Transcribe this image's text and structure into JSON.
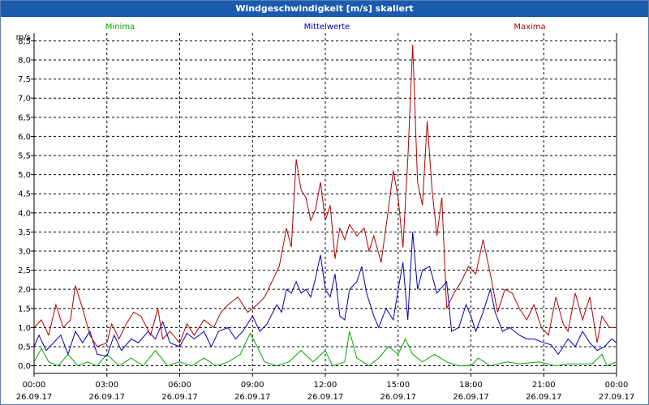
{
  "window": {
    "title": "Windgeschwindigkeit [m/s] skaliert"
  },
  "chart_data": {
    "type": "line",
    "title": "Windgeschwindigkeit [m/s] skaliert",
    "ylabel": "m/s",
    "ylim": [
      -0.2,
      8.7
    ],
    "yticks": [
      "0,0",
      "0,5",
      "1,0",
      "1,5",
      "2,0",
      "2,5",
      "3,0",
      "3,5",
      "4,0",
      "4,5",
      "5,0",
      "5,5",
      "6,0",
      "6,5",
      "7,0",
      "7,5",
      "8,0",
      "8,5"
    ],
    "xlim": [
      0,
      24
    ],
    "xticks": [
      {
        "x": 0,
        "time": "00:00",
        "date": "26.09.17"
      },
      {
        "x": 3,
        "time": "03:00",
        "date": "26.09.17"
      },
      {
        "x": 6,
        "time": "06:00",
        "date": "26.09.17"
      },
      {
        "x": 9,
        "time": "09:00",
        "date": "26.09.17"
      },
      {
        "x": 12,
        "time": "12:00",
        "date": "26.09.17"
      },
      {
        "x": 15,
        "time": "15:00",
        "date": "26.09.17"
      },
      {
        "x": 18,
        "time": "18:00",
        "date": "26.09.17"
      },
      {
        "x": 21,
        "time": "21:00",
        "date": "26.09.17"
      },
      {
        "x": 24,
        "time": "00:00",
        "date": "27.09.17"
      }
    ],
    "grid": true,
    "legend_position": "top",
    "series": [
      {
        "name": "Minima",
        "color": "#00aa00",
        "points": [
          [
            0,
            0.1
          ],
          [
            0.3,
            0.45
          ],
          [
            0.6,
            0.1
          ],
          [
            1.0,
            0
          ],
          [
            1.4,
            0.3
          ],
          [
            1.8,
            0
          ],
          [
            2.2,
            0.1
          ],
          [
            2.6,
            0
          ],
          [
            3.0,
            0.3
          ],
          [
            3.5,
            0
          ],
          [
            4.0,
            0.2
          ],
          [
            4.5,
            0
          ],
          [
            5.0,
            0.4
          ],
          [
            5.5,
            0
          ],
          [
            6.0,
            0.1
          ],
          [
            6.5,
            0
          ],
          [
            7.0,
            0.2
          ],
          [
            7.5,
            0
          ],
          [
            8.0,
            0.1
          ],
          [
            8.5,
            0.3
          ],
          [
            8.9,
            0.85
          ],
          [
            9.2,
            0.5
          ],
          [
            9.5,
            0.1
          ],
          [
            10.0,
            0
          ],
          [
            10.5,
            0.1
          ],
          [
            11.0,
            0.4
          ],
          [
            11.5,
            0.1
          ],
          [
            12.0,
            0.4
          ],
          [
            12.3,
            0
          ],
          [
            12.8,
            0.1
          ],
          [
            13.0,
            0.9
          ],
          [
            13.3,
            0.2
          ],
          [
            13.8,
            0
          ],
          [
            14.2,
            0.2
          ],
          [
            14.6,
            0.5
          ],
          [
            15.0,
            0.3
          ],
          [
            15.3,
            0.7
          ],
          [
            15.6,
            0.3
          ],
          [
            16.0,
            0.1
          ],
          [
            16.5,
            0.3
          ],
          [
            17.0,
            0.1
          ],
          [
            17.5,
            0
          ],
          [
            18.0,
            0
          ],
          [
            18.3,
            0.2
          ],
          [
            18.8,
            0
          ],
          [
            19.5,
            0.1
          ],
          [
            20,
            0.05
          ],
          [
            20.8,
            0.1
          ],
          [
            21.5,
            0
          ],
          [
            22.0,
            0.05
          ],
          [
            23.0,
            0.05
          ],
          [
            23.4,
            0.3
          ],
          [
            23.6,
            0
          ],
          [
            24.0,
            0.1
          ]
        ]
      },
      {
        "name": "Mittelwerte",
        "color": "#0000b0",
        "points": [
          [
            0,
            0.5
          ],
          [
            0.2,
            0.8
          ],
          [
            0.5,
            0.4
          ],
          [
            0.8,
            0.6
          ],
          [
            1.1,
            0.8
          ],
          [
            1.4,
            0.3
          ],
          [
            1.7,
            0.9
          ],
          [
            2.0,
            0.6
          ],
          [
            2.3,
            0.9
          ],
          [
            2.6,
            0.3
          ],
          [
            3.0,
            0.25
          ],
          [
            3.3,
            0.8
          ],
          [
            3.6,
            0.4
          ],
          [
            4.0,
            0.7
          ],
          [
            4.3,
            0.6
          ],
          [
            4.7,
            0.9
          ],
          [
            5.0,
            0.7
          ],
          [
            5.3,
            1.15
          ],
          [
            5.6,
            0.6
          ],
          [
            6.0,
            0.5
          ],
          [
            6.3,
            0.85
          ],
          [
            6.6,
            0.7
          ],
          [
            7.0,
            0.9
          ],
          [
            7.3,
            0.5
          ],
          [
            7.6,
            0.9
          ],
          [
            8.0,
            1.0
          ],
          [
            8.3,
            0.7
          ],
          [
            8.6,
            0.9
          ],
          [
            9.0,
            1.3
          ],
          [
            9.3,
            0.9
          ],
          [
            9.6,
            1.1
          ],
          [
            10.0,
            1.6
          ],
          [
            10.2,
            1.4
          ],
          [
            10.4,
            2.0
          ],
          [
            10.6,
            1.9
          ],
          [
            10.8,
            2.2
          ],
          [
            11.0,
            1.9
          ],
          [
            11.2,
            2.0
          ],
          [
            11.4,
            1.8
          ],
          [
            11.6,
            2.3
          ],
          [
            11.8,
            2.9
          ],
          [
            12.0,
            2.0
          ],
          [
            12.2,
            1.8
          ],
          [
            12.4,
            2.4
          ],
          [
            12.6,
            1.3
          ],
          [
            12.8,
            1.2
          ],
          [
            13.0,
            2.0
          ],
          [
            13.3,
            2.2
          ],
          [
            13.5,
            2.6
          ],
          [
            13.7,
            1.9
          ],
          [
            14.0,
            1.3
          ],
          [
            14.2,
            1.0
          ],
          [
            14.5,
            1.5
          ],
          [
            14.8,
            1.2
          ],
          [
            15.0,
            2.0
          ],
          [
            15.2,
            2.7
          ],
          [
            15.4,
            1.2
          ],
          [
            15.6,
            3.5
          ],
          [
            15.8,
            2.0
          ],
          [
            16.0,
            2.5
          ],
          [
            16.3,
            2.6
          ],
          [
            16.6,
            1.9
          ],
          [
            17.0,
            2.2
          ],
          [
            17.2,
            0.9
          ],
          [
            17.5,
            1.0
          ],
          [
            17.8,
            1.6
          ],
          [
            18.0,
            1.3
          ],
          [
            18.2,
            0.9
          ],
          [
            18.5,
            1.4
          ],
          [
            18.8,
            2.0
          ],
          [
            19.0,
            1.4
          ],
          [
            19.3,
            0.9
          ],
          [
            19.6,
            1.0
          ],
          [
            20.0,
            0.8
          ],
          [
            20.3,
            0.7
          ],
          [
            20.6,
            0.7
          ],
          [
            21.0,
            0.6
          ],
          [
            21.3,
            0.55
          ],
          [
            21.6,
            0.3
          ],
          [
            22.0,
            0.7
          ],
          [
            22.3,
            0.5
          ],
          [
            22.6,
            0.9
          ],
          [
            22.9,
            0.6
          ],
          [
            23.2,
            0.4
          ],
          [
            23.5,
            0.5
          ],
          [
            23.8,
            0.7
          ],
          [
            24.0,
            0.6
          ]
        ]
      },
      {
        "name": "Maxima",
        "color": "#b00000",
        "points": [
          [
            0,
            1.0
          ],
          [
            0.3,
            1.2
          ],
          [
            0.6,
            0.8
          ],
          [
            0.9,
            1.6
          ],
          [
            1.2,
            1.0
          ],
          [
            1.5,
            1.2
          ],
          [
            1.7,
            2.1
          ],
          [
            2.0,
            1.5
          ],
          [
            2.3,
            0.8
          ],
          [
            2.6,
            0.5
          ],
          [
            3.0,
            0.6
          ],
          [
            3.2,
            1.1
          ],
          [
            3.5,
            0.7
          ],
          [
            3.8,
            1.1
          ],
          [
            4.1,
            1.4
          ],
          [
            4.4,
            1.3
          ],
          [
            4.8,
            0.8
          ],
          [
            5.1,
            1.5
          ],
          [
            5.3,
            0.7
          ],
          [
            5.6,
            0.9
          ],
          [
            6.0,
            0.6
          ],
          [
            6.3,
            1.1
          ],
          [
            6.6,
            0.8
          ],
          [
            7.0,
            1.2
          ],
          [
            7.4,
            1.0
          ],
          [
            7.7,
            1.4
          ],
          [
            8.0,
            1.6
          ],
          [
            8.4,
            1.8
          ],
          [
            8.8,
            1.4
          ],
          [
            9.2,
            1.6
          ],
          [
            9.5,
            1.8
          ],
          [
            9.8,
            2.2
          ],
          [
            10.1,
            2.6
          ],
          [
            10.4,
            3.6
          ],
          [
            10.6,
            3.1
          ],
          [
            10.8,
            5.4
          ],
          [
            11.0,
            4.6
          ],
          [
            11.2,
            4.4
          ],
          [
            11.4,
            3.8
          ],
          [
            11.6,
            4.1
          ],
          [
            11.8,
            4.8
          ],
          [
            12.0,
            3.8
          ],
          [
            12.2,
            4.2
          ],
          [
            12.4,
            2.8
          ],
          [
            12.6,
            3.6
          ],
          [
            12.8,
            3.3
          ],
          [
            13.0,
            3.7
          ],
          [
            13.3,
            3.4
          ],
          [
            13.6,
            3.6
          ],
          [
            13.8,
            3.0
          ],
          [
            14.0,
            3.4
          ],
          [
            14.3,
            2.7
          ],
          [
            14.6,
            4.1
          ],
          [
            14.8,
            5.1
          ],
          [
            15.0,
            4.4
          ],
          [
            15.2,
            3.1
          ],
          [
            15.4,
            5.4
          ],
          [
            15.6,
            8.4
          ],
          [
            15.8,
            4.8
          ],
          [
            16.0,
            4.2
          ],
          [
            16.2,
            6.4
          ],
          [
            16.4,
            4.6
          ],
          [
            16.6,
            3.4
          ],
          [
            16.8,
            4.4
          ],
          [
            17.0,
            1.5
          ],
          [
            17.3,
            1.9
          ],
          [
            17.6,
            2.2
          ],
          [
            17.9,
            2.6
          ],
          [
            18.2,
            2.4
          ],
          [
            18.5,
            3.3
          ],
          [
            18.8,
            2.4
          ],
          [
            19.1,
            1.4
          ],
          [
            19.4,
            2.0
          ],
          [
            19.7,
            1.9
          ],
          [
            20.0,
            1.5
          ],
          [
            20.3,
            1.2
          ],
          [
            20.6,
            1.6
          ],
          [
            20.9,
            1.0
          ],
          [
            21.2,
            0.8
          ],
          [
            21.5,
            1.8
          ],
          [
            21.8,
            1.1
          ],
          [
            22.0,
            0.9
          ],
          [
            22.3,
            1.9
          ],
          [
            22.6,
            1.2
          ],
          [
            22.9,
            1.8
          ],
          [
            23.2,
            0.6
          ],
          [
            23.4,
            1.3
          ],
          [
            23.7,
            1.0
          ],
          [
            24.0,
            1.0
          ]
        ]
      }
    ]
  }
}
